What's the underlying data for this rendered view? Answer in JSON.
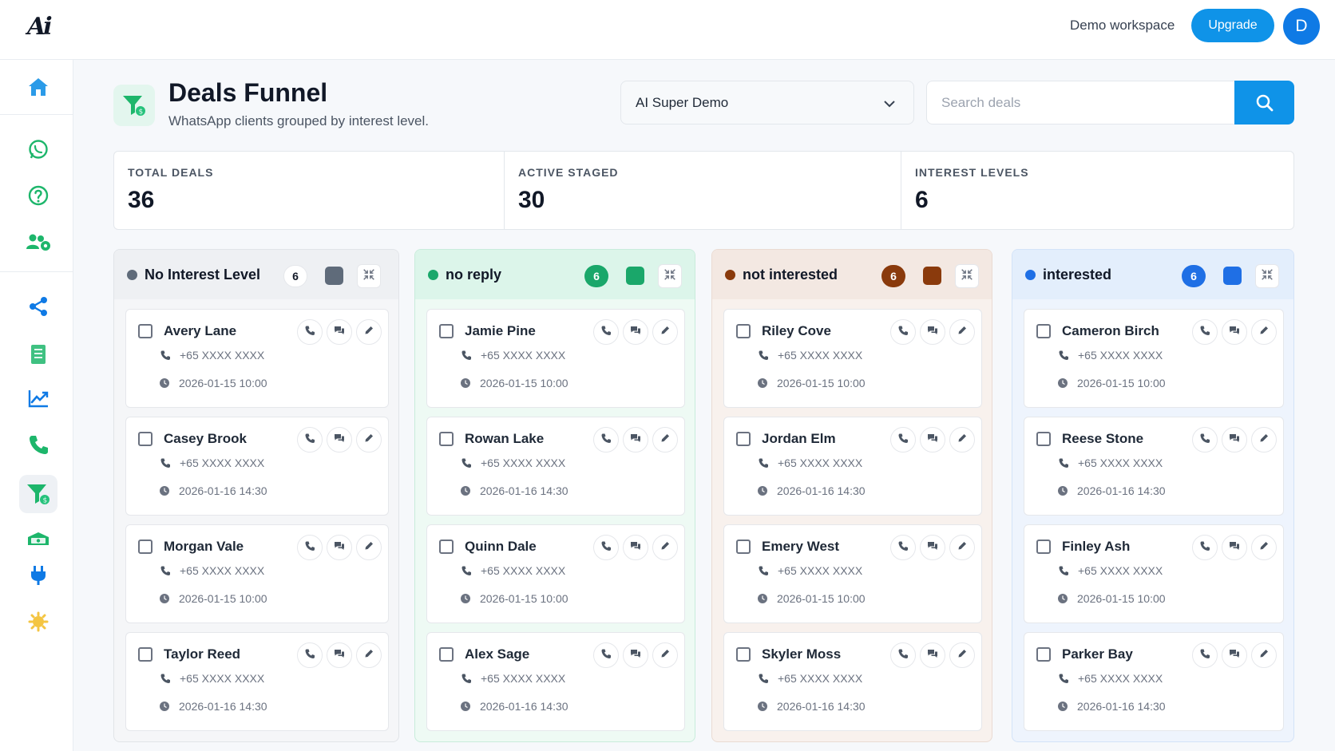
{
  "app": {
    "logo_text": "Ai"
  },
  "topbar": {
    "workspace": "Demo workspace",
    "upgrade_label": "Upgrade",
    "avatar_initial": "D"
  },
  "sidebar": {
    "items": [
      {
        "icon": "home-icon",
        "color": "#2b9be8"
      },
      {
        "icon": "whatsapp-icon",
        "color": "#1db66b"
      },
      {
        "icon": "help-icon",
        "color": "#1db66b"
      },
      {
        "icon": "users-gear-icon",
        "color": "#1db66b"
      },
      {
        "icon": "share-icon",
        "color": "#0f7ae5"
      },
      {
        "icon": "receipt-icon",
        "color": "#1db66b"
      },
      {
        "icon": "trend-chart-icon",
        "color": "#0f7ae5"
      },
      {
        "icon": "phone-icon",
        "color": "#1db66b"
      },
      {
        "icon": "funnel-icon",
        "color": "#1db66b",
        "active": true
      },
      {
        "icon": "cash-icon",
        "color": "#1db66b"
      },
      {
        "icon": "plug-icon",
        "color": "#0f7ae5"
      },
      {
        "icon": "sun-gear-icon",
        "color": "#f4c542"
      }
    ]
  },
  "header": {
    "title": "Deals Funnel",
    "subtitle": "WhatsApp clients grouped by interest level.",
    "selected_pipeline": "AI Super Demo",
    "search_placeholder": "Search deals"
  },
  "stats": [
    {
      "label": "TOTAL DEALS",
      "value": "36"
    },
    {
      "label": "ACTIVE STAGED",
      "value": "30"
    },
    {
      "label": "INTEREST LEVELS",
      "value": "6"
    }
  ],
  "columns": [
    {
      "title": "No Interest Level",
      "count": "6",
      "color": "#5f6b7a",
      "head_bg": "#eef0f3",
      "body_bg": "#f5f6f8",
      "border": "#e1e4e8",
      "count_bg": "#ffffff",
      "count_fg": "#111827",
      "cards": [
        {
          "name": "Avery Lane",
          "phone": "+65 XXXX XXXX",
          "time": "2026-01-15 10:00"
        },
        {
          "name": "Casey Brook",
          "phone": "+65 XXXX XXXX",
          "time": "2026-01-16 14:30"
        },
        {
          "name": "Morgan Vale",
          "phone": "+65 XXXX XXXX",
          "time": "2026-01-15 10:00"
        },
        {
          "name": "Taylor Reed",
          "phone": "+65 XXXX XXXX",
          "time": "2026-01-16 14:30"
        }
      ]
    },
    {
      "title": "no reply",
      "count": "6",
      "color": "#1aa76a",
      "head_bg": "#dcf5ea",
      "body_bg": "#eefaf4",
      "border": "#c8ecdb",
      "count_bg": "#1aa76a",
      "count_fg": "#ffffff",
      "cards": [
        {
          "name": "Jamie Pine",
          "phone": "+65 XXXX XXXX",
          "time": "2026-01-15 10:00"
        },
        {
          "name": "Rowan Lake",
          "phone": "+65 XXXX XXXX",
          "time": "2026-01-16 14:30"
        },
        {
          "name": "Quinn Dale",
          "phone": "+65 XXXX XXXX",
          "time": "2026-01-15 10:00"
        },
        {
          "name": "Alex Sage",
          "phone": "+65 XXXX XXXX",
          "time": "2026-01-16 14:30"
        }
      ]
    },
    {
      "title": "not interested",
      "count": "6",
      "color": "#8a3a0c",
      "head_bg": "#f3e8e2",
      "body_bg": "#f8f1ed",
      "border": "#eadbd2",
      "count_bg": "#8a3a0c",
      "count_fg": "#ffffff",
      "cards": [
        {
          "name": "Riley Cove",
          "phone": "+65 XXXX XXXX",
          "time": "2026-01-15 10:00"
        },
        {
          "name": "Jordan Elm",
          "phone": "+65 XXXX XXXX",
          "time": "2026-01-16 14:30"
        },
        {
          "name": "Emery West",
          "phone": "+65 XXXX XXXX",
          "time": "2026-01-15 10:00"
        },
        {
          "name": "Skyler Moss",
          "phone": "+65 XXXX XXXX",
          "time": "2026-01-16 14:30"
        }
      ]
    },
    {
      "title": "interested",
      "count": "6",
      "color": "#1f6fe5",
      "head_bg": "#e3eefc",
      "body_bg": "#eef4fd",
      "border": "#d3e3f8",
      "count_bg": "#1f6fe5",
      "count_fg": "#ffffff",
      "cards": [
        {
          "name": "Cameron Birch",
          "phone": "+65 XXXX XXXX",
          "time": "2026-01-15 10:00"
        },
        {
          "name": "Reese Stone",
          "phone": "+65 XXXX XXXX",
          "time": "2026-01-16 14:30"
        },
        {
          "name": "Finley Ash",
          "phone": "+65 XXXX XXXX",
          "time": "2026-01-15 10:00"
        },
        {
          "name": "Parker Bay",
          "phone": "+65 XXXX XXXX",
          "time": "2026-01-16 14:30"
        }
      ]
    }
  ]
}
